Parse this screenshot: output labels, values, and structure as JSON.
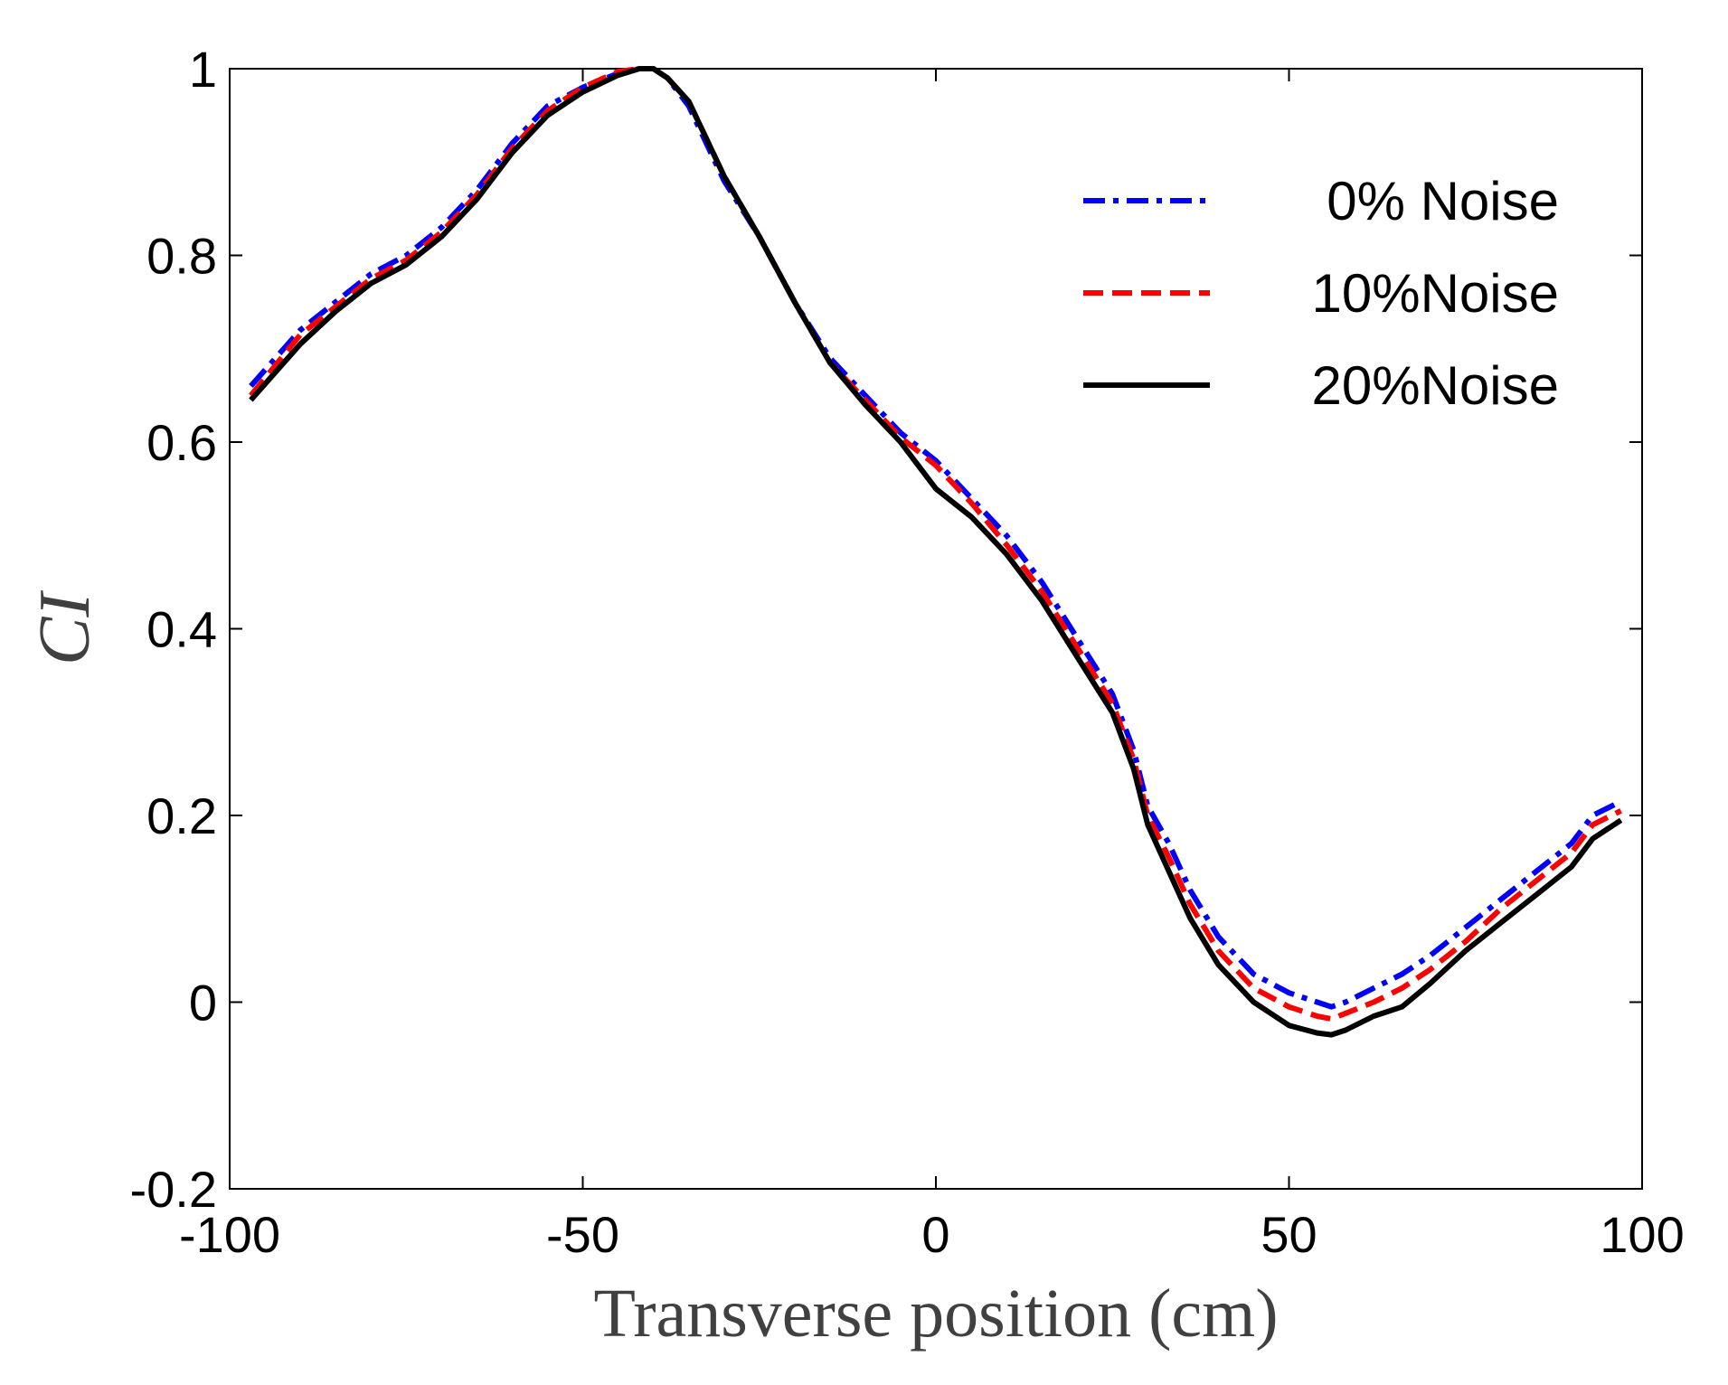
{
  "chart_data": {
    "type": "line",
    "title": "",
    "xlabel": "Transverse position (cm)",
    "ylabel": "CI",
    "xlim": [
      -100,
      100
    ],
    "ylim": [
      -0.2,
      1
    ],
    "xticks": [
      -100,
      -50,
      0,
      50,
      100
    ],
    "xtick_labels": [
      "-100",
      "-50",
      "0",
      "50",
      "100"
    ],
    "yticks": [
      -0.2,
      0,
      0.2,
      0.4,
      0.6,
      0.8,
      1
    ],
    "ytick_labels": [
      "-0.2",
      "0",
      "0.2",
      "0.4",
      "0.6",
      "0.8",
      "1"
    ],
    "grid": false,
    "legend_position": "top-right",
    "series": [
      {
        "name": "0% Noise",
        "color": "#0000ff",
        "style": "dash-dot",
        "x": [
          -97,
          -90,
          -85,
          -80,
          -75,
          -70,
          -65,
          -60,
          -55,
          -50,
          -45,
          -42,
          -40,
          -38,
          -35,
          -30,
          -25,
          -20,
          -15,
          -10,
          -5,
          0,
          5,
          10,
          15,
          20,
          25,
          28,
          30,
          33,
          36,
          40,
          45,
          50,
          54,
          56,
          58,
          62,
          66,
          70,
          75,
          80,
          85,
          90,
          93,
          97
        ],
        "y": [
          0.66,
          0.72,
          0.75,
          0.78,
          0.8,
          0.83,
          0.87,
          0.92,
          0.96,
          0.98,
          0.995,
          1.0,
          1.0,
          0.99,
          0.96,
          0.88,
          0.82,
          0.75,
          0.69,
          0.65,
          0.61,
          0.58,
          0.54,
          0.5,
          0.45,
          0.39,
          0.33,
          0.27,
          0.21,
          0.17,
          0.12,
          0.07,
          0.03,
          0.01,
          0.0,
          -0.005,
          0.0,
          0.015,
          0.03,
          0.05,
          0.08,
          0.11,
          0.14,
          0.17,
          0.2,
          0.215
        ]
      },
      {
        "name": "10%Noise",
        "color": "#ff0000",
        "style": "dashed",
        "x": [
          -97,
          -90,
          -85,
          -80,
          -75,
          -70,
          -65,
          -60,
          -55,
          -50,
          -45,
          -42,
          -40,
          -38,
          -35,
          -30,
          -25,
          -20,
          -15,
          -10,
          -5,
          0,
          5,
          10,
          15,
          20,
          25,
          28,
          30,
          33,
          36,
          40,
          45,
          50,
          54,
          56,
          58,
          62,
          66,
          70,
          75,
          80,
          85,
          90,
          93,
          97
        ],
        "y": [
          0.65,
          0.715,
          0.745,
          0.775,
          0.795,
          0.825,
          0.865,
          0.915,
          0.955,
          0.98,
          0.997,
          1.0,
          1.0,
          0.99,
          0.965,
          0.885,
          0.82,
          0.75,
          0.685,
          0.645,
          0.605,
          0.575,
          0.535,
          0.49,
          0.44,
          0.38,
          0.32,
          0.26,
          0.2,
          0.155,
          0.105,
          0.055,
          0.015,
          -0.005,
          -0.015,
          -0.018,
          -0.012,
          0.0,
          0.015,
          0.035,
          0.065,
          0.1,
          0.13,
          0.16,
          0.19,
          0.205
        ]
      },
      {
        "name": "20%Noise",
        "color": "#000000",
        "style": "solid",
        "x": [
          -97,
          -90,
          -85,
          -80,
          -75,
          -70,
          -65,
          -60,
          -55,
          -50,
          -45,
          -42,
          -40,
          -38,
          -35,
          -30,
          -25,
          -20,
          -15,
          -10,
          -5,
          0,
          5,
          10,
          15,
          20,
          25,
          28,
          30,
          33,
          36,
          40,
          45,
          50,
          54,
          56,
          58,
          62,
          66,
          70,
          75,
          80,
          85,
          90,
          93,
          97
        ],
        "y": [
          0.645,
          0.705,
          0.74,
          0.77,
          0.79,
          0.82,
          0.86,
          0.91,
          0.95,
          0.975,
          0.993,
          1.0,
          1.0,
          0.99,
          0.965,
          0.885,
          0.82,
          0.75,
          0.685,
          0.64,
          0.6,
          0.55,
          0.52,
          0.48,
          0.43,
          0.37,
          0.31,
          0.25,
          0.19,
          0.14,
          0.09,
          0.04,
          0.0,
          -0.025,
          -0.033,
          -0.035,
          -0.03,
          -0.015,
          -0.005,
          0.02,
          0.055,
          0.085,
          0.115,
          0.145,
          0.175,
          0.195
        ]
      }
    ]
  }
}
